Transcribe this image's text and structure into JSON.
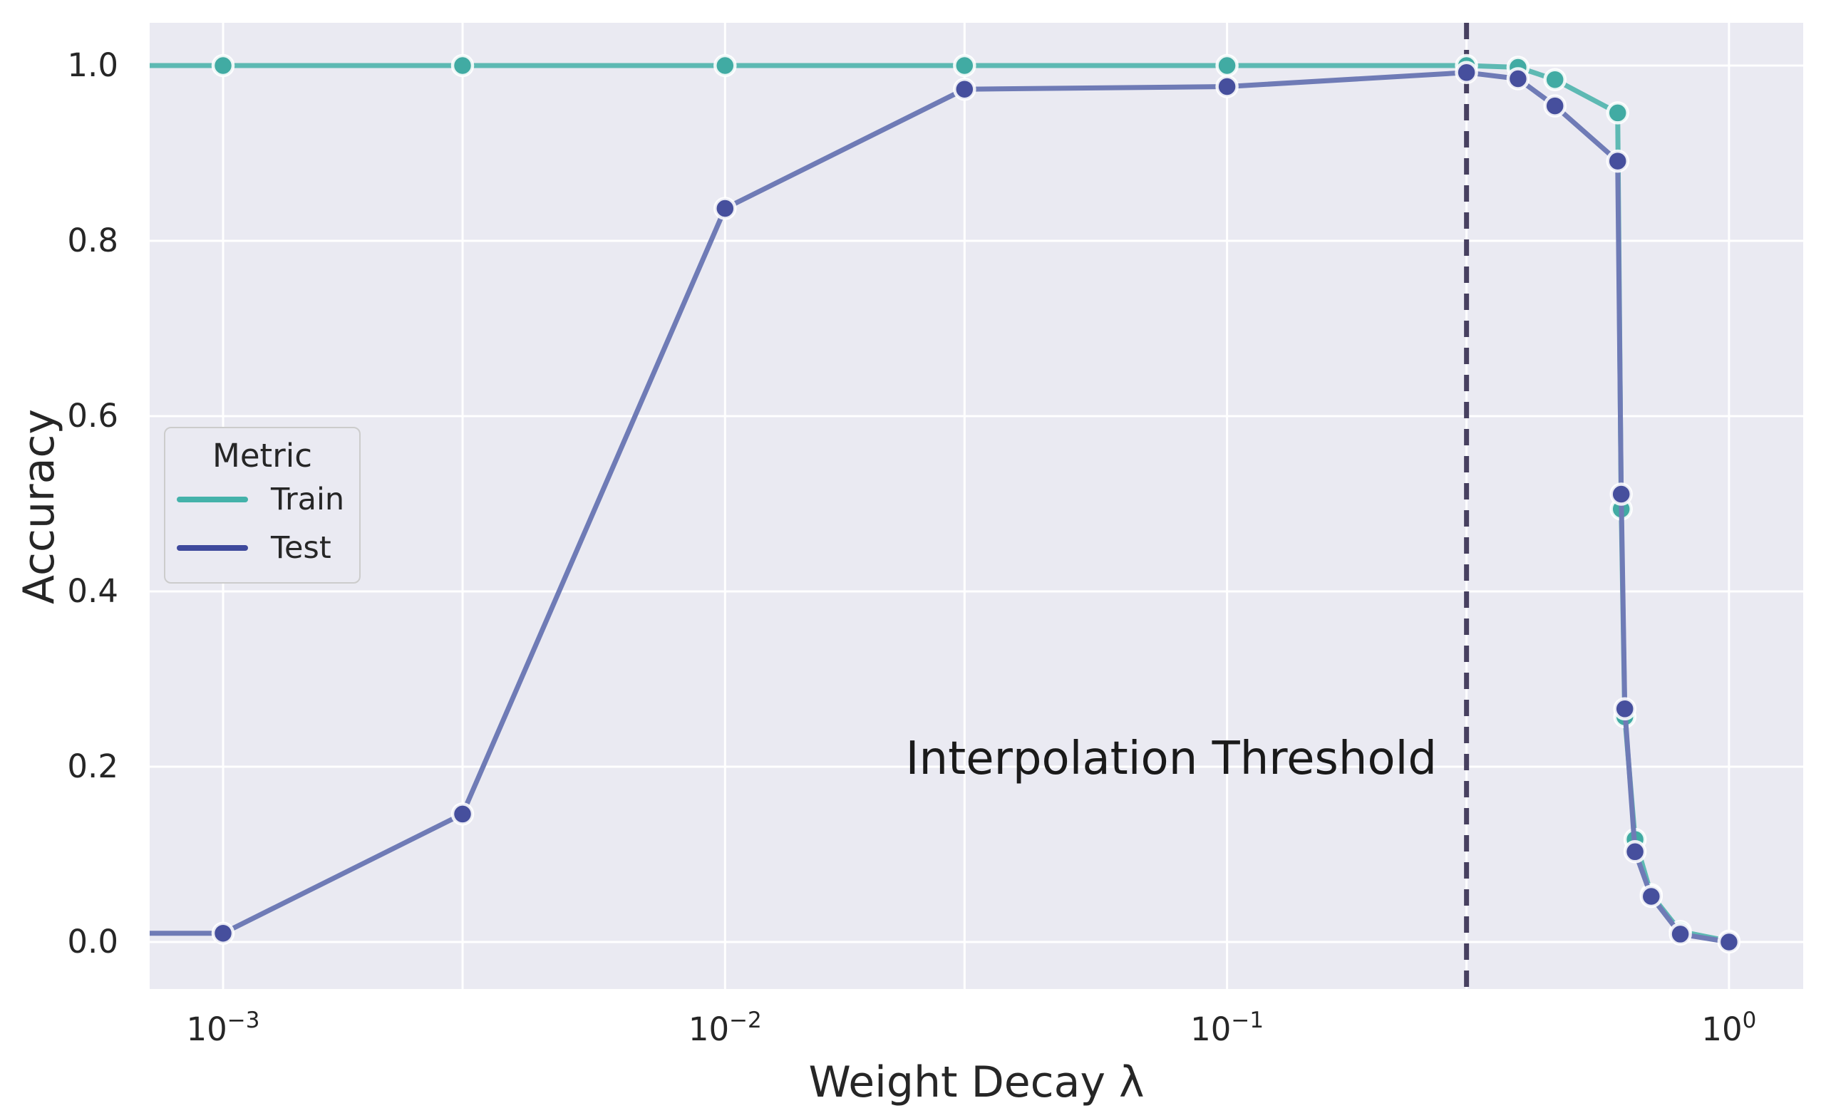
{
  "figure": {
    "background": "#ffffff",
    "plot_background": "#eaeaf2",
    "grid_color": "#ffffff",
    "text_color": "#262626"
  },
  "chart_data": {
    "type": "line",
    "title": "",
    "xlabel": "Weight Decay λ",
    "ylabel": "Accuracy",
    "x_scale": "log",
    "xlim": [
      0.00072,
      1.41
    ],
    "ylim": [
      -0.054,
      1.049
    ],
    "grid": true,
    "legend_position": "center-left",
    "x": [
      0.001,
      0.003,
      0.01,
      0.03,
      0.1,
      0.3,
      0.38,
      0.45,
      0.6,
      0.61,
      0.62,
      0.65,
      0.7,
      0.8,
      1.0
    ],
    "series": [
      {
        "name": "Train",
        "line_color": "#5db9b3",
        "marker_color": "#41aba3",
        "legend_color": "#44b2aa",
        "values": [
          1.0,
          1.0,
          1.0,
          1.0,
          1.0,
          1.0,
          0.998,
          0.984,
          0.946,
          0.494,
          0.257,
          0.117,
          0.054,
          0.012,
          0.001
        ]
      },
      {
        "name": "Test",
        "line_color": "#6f7bb6",
        "marker_color": "#464f9d",
        "legend_color": "#3e499c",
        "values": [
          0.01,
          0.146,
          0.837,
          0.973,
          0.976,
          0.992,
          0.985,
          0.954,
          0.891,
          0.511,
          0.266,
          0.103,
          0.052,
          0.009,
          0.0
        ]
      }
    ],
    "x_ticks": [
      {
        "base": "10",
        "exp": "−3",
        "value": 0.001
      },
      {
        "base": "10",
        "exp": "−2",
        "value": 0.01
      },
      {
        "base": "10",
        "exp": "−1",
        "value": 0.1
      },
      {
        "base": "10",
        "exp": "0",
        "value": 1.0
      }
    ],
    "x_gridlines": [
      0.001,
      0.003,
      0.01,
      0.03,
      0.1,
      0.3,
      1.0
    ],
    "y_ticks": [
      {
        "label": "0.0",
        "value": 0.0
      },
      {
        "label": "0.2",
        "value": 0.2
      },
      {
        "label": "0.4",
        "value": 0.4
      },
      {
        "label": "0.6",
        "value": 0.6
      },
      {
        "label": "0.8",
        "value": 0.8
      },
      {
        "label": "1.0",
        "value": 1.0
      }
    ],
    "threshold": {
      "x": 0.3,
      "label": "Interpolation Threshold",
      "color": "#474060"
    },
    "legend": {
      "title": "Metric",
      "entries": [
        "Train",
        "Test"
      ]
    }
  }
}
